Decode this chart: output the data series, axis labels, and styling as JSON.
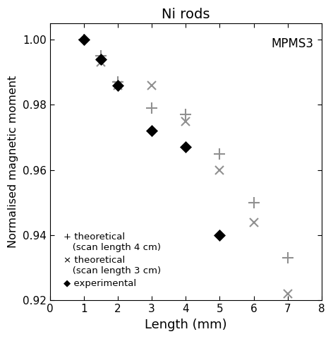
{
  "title": "Ni rods",
  "xlabel": "Length (mm)",
  "ylabel": "Normalised magnetic moment",
  "xlim": [
    0,
    8
  ],
  "ylim": [
    0.92,
    1.005
  ],
  "annotation": "MPMS3",
  "theoretical_4cm": {
    "x": [
      1.0,
      1.5,
      2.0,
      3.0,
      4.0,
      5.0,
      6.0,
      7.0
    ],
    "y": [
      1.0,
      0.995,
      0.987,
      0.979,
      0.977,
      0.965,
      0.95,
      0.933
    ],
    "color": "#909090",
    "marker": "+"
  },
  "theoretical_3cm": {
    "x": [
      1.5,
      2.0,
      3.0,
      4.0,
      5.0,
      6.0,
      7.0
    ],
    "y": [
      0.993,
      0.986,
      0.986,
      0.975,
      0.96,
      0.944,
      0.922
    ],
    "color": "#909090",
    "marker": "x"
  },
  "experimental": {
    "x": [
      1.0,
      1.5,
      2.0,
      3.0,
      4.0,
      5.0
    ],
    "y": [
      1.0,
      0.994,
      0.986,
      0.972,
      0.967,
      0.94
    ],
    "color": "#000000",
    "marker": "D"
  },
  "yticks": [
    0.92,
    0.94,
    0.96,
    0.98,
    1.0
  ],
  "xticks": [
    0,
    1,
    2,
    3,
    4,
    5,
    6,
    7,
    8
  ],
  "figsize": [
    4.72,
    4.8
  ],
  "dpi": 100
}
